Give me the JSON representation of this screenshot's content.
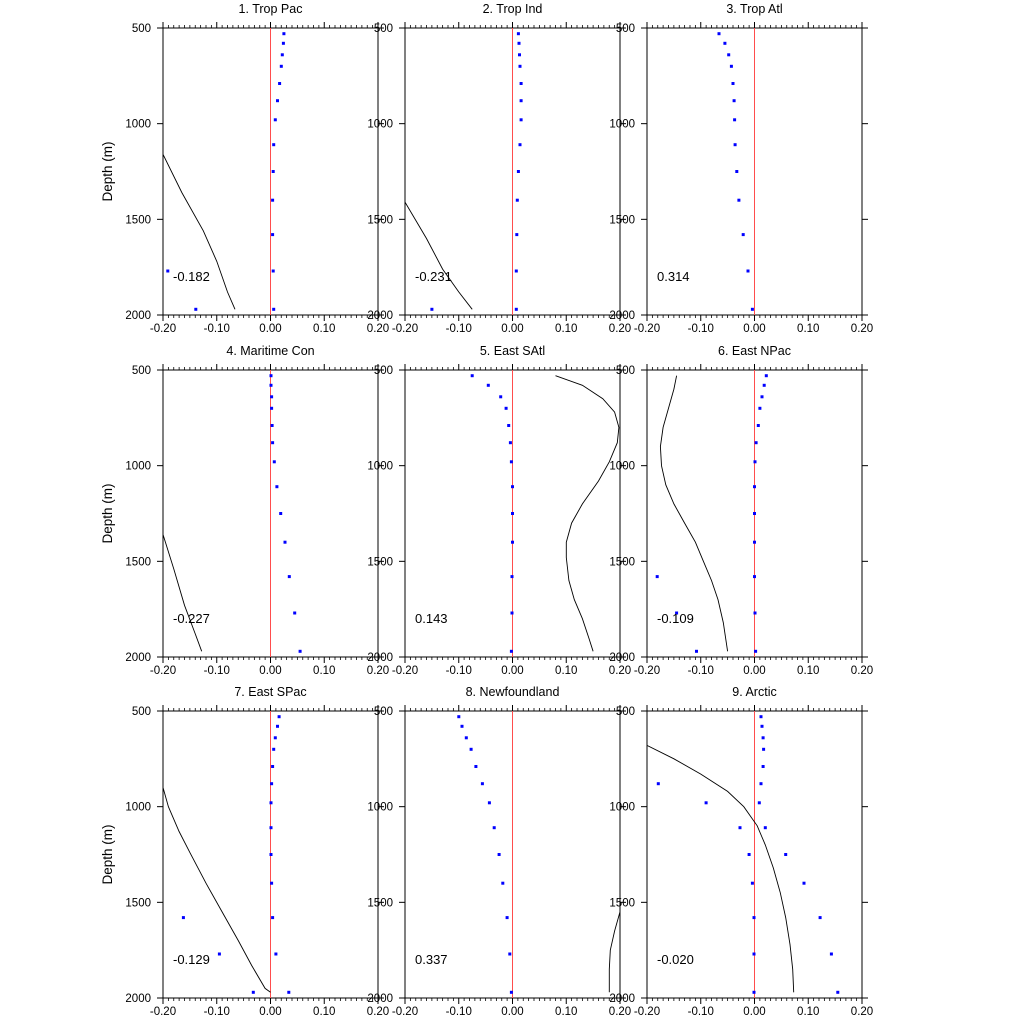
{
  "chart_data": {
    "type": "scatter",
    "layout": "3x3 panel grid",
    "shared": {
      "ylabel": "Depth (m)",
      "ylim": [
        500,
        2000
      ],
      "y_reversed": true,
      "xlim": [
        -0.2,
        0.2
      ],
      "xticks": [
        "-0.20",
        "-0.10",
        "0.00",
        "0.10",
        "0.20"
      ],
      "yticks": [
        "500",
        "1000",
        "1500",
        "2000"
      ],
      "dot_color": "#0000ff",
      "zero_line_color": "#ff4d4d",
      "curve_color": "#000000"
    },
    "panels": [
      {
        "title": "1. Trop Pac",
        "label": "-0.182",
        "points": [
          [
            0.025,
            530
          ],
          [
            0.024,
            580
          ],
          [
            0.022,
            640
          ],
          [
            0.02,
            700
          ],
          [
            0.017,
            790
          ],
          [
            0.013,
            880
          ],
          [
            0.009,
            980
          ],
          [
            0.006,
            1110
          ],
          [
            0.005,
            1250
          ],
          [
            0.004,
            1400
          ],
          [
            0.004,
            1580
          ],
          [
            0.005,
            1770
          ],
          [
            0.006,
            1970
          ],
          [
            -0.191,
            1770
          ],
          [
            -0.139,
            1970
          ]
        ],
        "curve": [
          [
            -0.2,
            1160
          ],
          [
            -0.165,
            1360
          ],
          [
            -0.125,
            1560
          ],
          [
            -0.1,
            1720
          ],
          [
            -0.08,
            1880
          ],
          [
            -0.066,
            1970
          ]
        ]
      },
      {
        "title": "2. Trop Ind",
        "label": "-0.231",
        "points": [
          [
            0.011,
            530
          ],
          [
            0.012,
            580
          ],
          [
            0.013,
            640
          ],
          [
            0.014,
            700
          ],
          [
            0.016,
            790
          ],
          [
            0.016,
            880
          ],
          [
            0.016,
            980
          ],
          [
            0.014,
            1110
          ],
          [
            0.011,
            1250
          ],
          [
            0.009,
            1400
          ],
          [
            0.008,
            1580
          ],
          [
            0.007,
            1770
          ],
          [
            0.007,
            1970
          ],
          [
            -0.15,
            1970
          ]
        ],
        "curve": [
          [
            -0.2,
            1410
          ],
          [
            -0.16,
            1600
          ],
          [
            -0.13,
            1760
          ],
          [
            -0.1,
            1880
          ],
          [
            -0.075,
            1970
          ]
        ]
      },
      {
        "title": "3. Trop Atl",
        "label": "0.314",
        "points": [
          [
            -0.066,
            530
          ],
          [
            -0.055,
            580
          ],
          [
            -0.048,
            640
          ],
          [
            -0.043,
            700
          ],
          [
            -0.04,
            790
          ],
          [
            -0.038,
            880
          ],
          [
            -0.037,
            980
          ],
          [
            -0.036,
            1110
          ],
          [
            -0.033,
            1250
          ],
          [
            -0.029,
            1400
          ],
          [
            -0.021,
            1580
          ],
          [
            -0.012,
            1770
          ],
          [
            -0.004,
            1970
          ]
        ],
        "curve": []
      },
      {
        "title": "4. Maritime Con",
        "label": "-0.227",
        "points": [
          [
            0.001,
            530
          ],
          [
            0.001,
            580
          ],
          [
            0.002,
            640
          ],
          [
            0.002,
            700
          ],
          [
            0.003,
            790
          ],
          [
            0.004,
            880
          ],
          [
            0.007,
            980
          ],
          [
            0.012,
            1110
          ],
          [
            0.019,
            1250
          ],
          [
            0.027,
            1400
          ],
          [
            0.035,
            1580
          ],
          [
            0.045,
            1770
          ],
          [
            0.055,
            1970
          ]
        ],
        "curve": [
          [
            -0.2,
            1360
          ],
          [
            -0.18,
            1540
          ],
          [
            -0.16,
            1730
          ],
          [
            -0.14,
            1880
          ],
          [
            -0.128,
            1970
          ]
        ]
      },
      {
        "title": "5. East SAtl",
        "label": "0.143",
        "points": [
          [
            -0.075,
            530
          ],
          [
            -0.045,
            580
          ],
          [
            -0.022,
            640
          ],
          [
            -0.012,
            700
          ],
          [
            -0.007,
            790
          ],
          [
            -0.004,
            880
          ],
          [
            -0.002,
            980
          ],
          [
            0.0,
            1110
          ],
          [
            0.0,
            1250
          ],
          [
            0.0,
            1400
          ],
          [
            -0.001,
            1580
          ],
          [
            -0.001,
            1770
          ],
          [
            -0.002,
            1970
          ]
        ],
        "curve": [
          [
            0.08,
            530
          ],
          [
            0.13,
            580
          ],
          [
            0.168,
            650
          ],
          [
            0.19,
            720
          ],
          [
            0.198,
            800
          ],
          [
            0.195,
            880
          ],
          [
            0.18,
            980
          ],
          [
            0.16,
            1080
          ],
          [
            0.13,
            1200
          ],
          [
            0.11,
            1300
          ],
          [
            0.1,
            1400
          ],
          [
            0.1,
            1480
          ],
          [
            0.105,
            1600
          ],
          [
            0.115,
            1700
          ],
          [
            0.13,
            1800
          ],
          [
            0.142,
            1900
          ],
          [
            0.15,
            1970
          ]
        ]
      },
      {
        "title": "6. East NPac",
        "label": "-0.109",
        "points": [
          [
            0.022,
            530
          ],
          [
            0.018,
            580
          ],
          [
            0.014,
            640
          ],
          [
            0.01,
            700
          ],
          [
            0.007,
            790
          ],
          [
            0.003,
            880
          ],
          [
            0.001,
            980
          ],
          [
            0.0,
            1110
          ],
          [
            0.0,
            1250
          ],
          [
            0.0,
            1400
          ],
          [
            0.0,
            1580
          ],
          [
            0.001,
            1770
          ],
          [
            0.002,
            1970
          ],
          [
            -0.181,
            1580
          ],
          [
            -0.145,
            1770
          ],
          [
            -0.108,
            1970
          ]
        ],
        "curve": [
          [
            -0.145,
            530
          ],
          [
            -0.15,
            600
          ],
          [
            -0.16,
            700
          ],
          [
            -0.17,
            800
          ],
          [
            -0.175,
            900
          ],
          [
            -0.173,
            1000
          ],
          [
            -0.165,
            1100
          ],
          [
            -0.15,
            1200
          ],
          [
            -0.13,
            1300
          ],
          [
            -0.11,
            1400
          ],
          [
            -0.095,
            1500
          ],
          [
            -0.08,
            1600
          ],
          [
            -0.068,
            1700
          ],
          [
            -0.058,
            1820
          ],
          [
            -0.05,
            1970
          ]
        ]
      },
      {
        "title": "7. East SPac",
        "label": "-0.129",
        "points": [
          [
            0.016,
            530
          ],
          [
            0.013,
            580
          ],
          [
            0.009,
            640
          ],
          [
            0.006,
            700
          ],
          [
            0.004,
            790
          ],
          [
            0.002,
            880
          ],
          [
            0.001,
            980
          ],
          [
            0.001,
            1110
          ],
          [
            0.001,
            1250
          ],
          [
            0.002,
            1400
          ],
          [
            0.004,
            1580
          ],
          [
            0.01,
            1770
          ],
          [
            0.034,
            1970
          ],
          [
            -0.162,
            1580
          ],
          [
            -0.095,
            1770
          ],
          [
            -0.032,
            1970
          ]
        ],
        "curve": [
          [
            -0.2,
            900
          ],
          [
            -0.19,
            1000
          ],
          [
            -0.17,
            1130
          ],
          [
            -0.15,
            1240
          ],
          [
            -0.12,
            1400
          ],
          [
            -0.09,
            1550
          ],
          [
            -0.06,
            1700
          ],
          [
            -0.035,
            1830
          ],
          [
            -0.01,
            1950
          ],
          [
            0.0,
            1970
          ]
        ]
      },
      {
        "title": "8. Newfoundland",
        "label": "0.337",
        "points": [
          [
            -0.1,
            530
          ],
          [
            -0.094,
            580
          ],
          [
            -0.086,
            640
          ],
          [
            -0.077,
            700
          ],
          [
            -0.068,
            790
          ],
          [
            -0.056,
            880
          ],
          [
            -0.043,
            980
          ],
          [
            -0.034,
            1110
          ],
          [
            -0.025,
            1250
          ],
          [
            -0.018,
            1400
          ],
          [
            -0.01,
            1580
          ],
          [
            -0.005,
            1770
          ],
          [
            -0.002,
            1970
          ]
        ],
        "curve": [
          [
            0.2,
            1550
          ],
          [
            0.19,
            1650
          ],
          [
            0.182,
            1750
          ],
          [
            0.18,
            1850
          ],
          [
            0.18,
            1970
          ]
        ]
      },
      {
        "title": "9. Arctic",
        "label": "-0.020",
        "points": [
          [
            0.012,
            530
          ],
          [
            0.014,
            580
          ],
          [
            0.016,
            640
          ],
          [
            0.017,
            700
          ],
          [
            0.016,
            790
          ],
          [
            0.012,
            880
          ],
          [
            0.009,
            980
          ],
          [
            0.02,
            1110
          ],
          [
            0.058,
            1250
          ],
          [
            0.092,
            1400
          ],
          [
            0.122,
            1580
          ],
          [
            0.143,
            1770
          ],
          [
            0.155,
            1970
          ],
          [
            -0.179,
            880
          ],
          [
            -0.09,
            980
          ],
          [
            -0.027,
            1110
          ],
          [
            -0.01,
            1250
          ],
          [
            -0.004,
            1400
          ],
          [
            -0.001,
            1580
          ],
          [
            -0.001,
            1770
          ],
          [
            -0.001,
            1970
          ]
        ],
        "curve": [
          [
            -0.2,
            680
          ],
          [
            -0.15,
            750
          ],
          [
            -0.1,
            830
          ],
          [
            -0.05,
            920
          ],
          [
            -0.02,
            1000
          ],
          [
            0.005,
            1100
          ],
          [
            0.02,
            1200
          ],
          [
            0.035,
            1320
          ],
          [
            0.048,
            1450
          ],
          [
            0.058,
            1580
          ],
          [
            0.066,
            1720
          ],
          [
            0.071,
            1850
          ],
          [
            0.073,
            1970
          ]
        ]
      }
    ]
  }
}
